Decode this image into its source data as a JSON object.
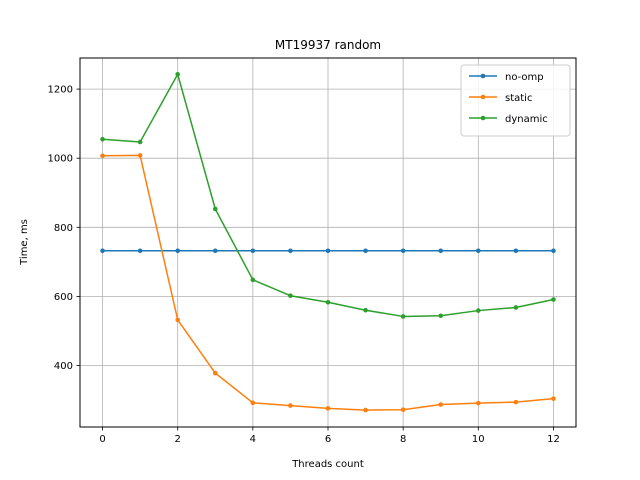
{
  "chart_data": {
    "type": "line",
    "title": "MT19937 random",
    "xlabel": "Threads count",
    "ylabel": "Time, ms",
    "xlim": [
      -0.6,
      12.6
    ],
    "ylim": [
      222,
      1290
    ],
    "xticks": [
      0,
      2,
      4,
      6,
      8,
      10,
      12
    ],
    "yticks": [
      400,
      600,
      800,
      1000,
      1200
    ],
    "grid": true,
    "legend_position": "top-right",
    "x": [
      0,
      1,
      2,
      3,
      4,
      5,
      6,
      7,
      8,
      9,
      10,
      11,
      12
    ],
    "series": [
      {
        "name": "no-omp",
        "color": "#1f77b4",
        "values": [
          732,
          732,
          732,
          732,
          732,
          732,
          732,
          732,
          732,
          732,
          732,
          732,
          732
        ]
      },
      {
        "name": "static",
        "color": "#ff7f0e",
        "values": [
          1007,
          1008,
          532,
          378,
          292,
          284,
          276,
          271,
          272,
          287,
          291,
          294,
          304
        ]
      },
      {
        "name": "dynamic",
        "color": "#2ca02c",
        "values": [
          1055,
          1047,
          1243,
          853,
          648,
          602,
          583,
          560,
          542,
          544,
          559,
          568,
          591
        ]
      }
    ]
  }
}
